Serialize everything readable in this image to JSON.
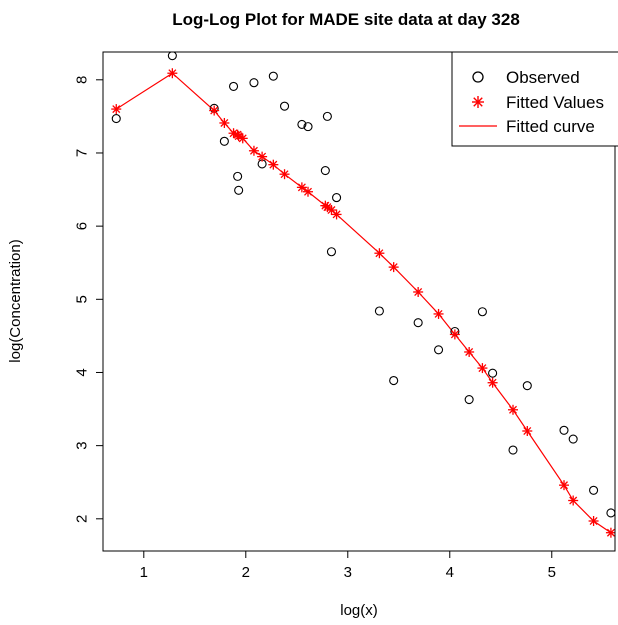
{
  "chart_data": {
    "type": "scatter",
    "title": "Log-Log Plot for MADE site data at day 328",
    "xlabel": "log(x)",
    "ylabel": "log(Concentration)",
    "xlim": [
      0.6,
      5.62
    ],
    "ylim": [
      1.56,
      8.38
    ],
    "xticks": [
      "1",
      "2",
      "3",
      "4",
      "5"
    ],
    "yticks": [
      "2",
      "3",
      "4",
      "5",
      "6",
      "7",
      "8"
    ],
    "legend_position": "top-right",
    "colors": {
      "observed": "#000000",
      "fitted": "#ff0000"
    },
    "series": [
      {
        "name": "Observed",
        "marker": "open-circle",
        "points": [
          [
            0.73,
            7.47
          ],
          [
            1.28,
            8.33
          ],
          [
            1.69,
            7.61
          ],
          [
            1.79,
            7.16
          ],
          [
            1.88,
            7.91
          ],
          [
            1.92,
            6.68
          ],
          [
            1.93,
            6.49
          ],
          [
            2.08,
            7.96
          ],
          [
            2.16,
            6.85
          ],
          [
            2.27,
            8.05
          ],
          [
            2.38,
            7.64
          ],
          [
            2.55,
            7.39
          ],
          [
            2.61,
            7.36
          ],
          [
            2.78,
            6.76
          ],
          [
            2.8,
            7.5
          ],
          [
            2.84,
            5.65
          ],
          [
            2.89,
            6.39
          ],
          [
            3.31,
            4.84
          ],
          [
            3.45,
            3.89
          ],
          [
            3.69,
            4.68
          ],
          [
            3.89,
            4.31
          ],
          [
            4.05,
            4.56
          ],
          [
            4.19,
            3.63
          ],
          [
            4.32,
            4.83
          ],
          [
            4.42,
            3.99
          ],
          [
            4.62,
            2.94
          ],
          [
            4.76,
            3.82
          ],
          [
            5.12,
            3.21
          ],
          [
            5.21,
            3.09
          ],
          [
            5.41,
            2.39
          ],
          [
            5.58,
            2.08
          ]
        ]
      },
      {
        "name": "Fitted Values",
        "marker": "asterisk",
        "points": [
          [
            0.73,
            7.6
          ],
          [
            1.28,
            8.09
          ],
          [
            1.69,
            7.58
          ],
          [
            1.79,
            7.41
          ],
          [
            1.88,
            7.27
          ],
          [
            1.92,
            7.25
          ],
          [
            1.93,
            7.23
          ],
          [
            1.97,
            7.2
          ],
          [
            2.08,
            7.03
          ],
          [
            2.16,
            6.95
          ],
          [
            2.27,
            6.84
          ],
          [
            2.38,
            6.71
          ],
          [
            2.55,
            6.53
          ],
          [
            2.61,
            6.47
          ],
          [
            2.78,
            6.28
          ],
          [
            2.8,
            6.26
          ],
          [
            2.84,
            6.22
          ],
          [
            2.89,
            6.16
          ],
          [
            3.31,
            5.63
          ],
          [
            3.45,
            5.44
          ],
          [
            3.69,
            5.1
          ],
          [
            3.89,
            4.8
          ],
          [
            4.05,
            4.52
          ],
          [
            4.19,
            4.28
          ],
          [
            4.32,
            4.06
          ],
          [
            4.42,
            3.86
          ],
          [
            4.62,
            3.49
          ],
          [
            4.76,
            3.2
          ],
          [
            5.12,
            2.46
          ],
          [
            5.21,
            2.25
          ],
          [
            5.41,
            1.97
          ],
          [
            5.58,
            1.81
          ]
        ]
      },
      {
        "name": "Fitted curve",
        "marker": "line",
        "points": [
          [
            0.73,
            7.6
          ],
          [
            1.28,
            8.09
          ],
          [
            1.69,
            7.58
          ],
          [
            1.79,
            7.41
          ],
          [
            1.88,
            7.27
          ],
          [
            1.92,
            7.25
          ],
          [
            1.93,
            7.23
          ],
          [
            1.97,
            7.2
          ],
          [
            2.08,
            7.03
          ],
          [
            2.16,
            6.95
          ],
          [
            2.27,
            6.84
          ],
          [
            2.38,
            6.71
          ],
          [
            2.55,
            6.53
          ],
          [
            2.61,
            6.47
          ],
          [
            2.78,
            6.28
          ],
          [
            2.8,
            6.26
          ],
          [
            2.84,
            6.22
          ],
          [
            2.89,
            6.16
          ],
          [
            3.31,
            5.63
          ],
          [
            3.45,
            5.44
          ],
          [
            3.69,
            5.1
          ],
          [
            3.89,
            4.8
          ],
          [
            4.05,
            4.52
          ],
          [
            4.19,
            4.28
          ],
          [
            4.32,
            4.06
          ],
          [
            4.42,
            3.86
          ],
          [
            4.62,
            3.49
          ],
          [
            4.76,
            3.2
          ],
          [
            5.12,
            2.46
          ],
          [
            5.21,
            2.25
          ],
          [
            5.41,
            1.97
          ],
          [
            5.58,
            1.81
          ]
        ]
      }
    ]
  }
}
